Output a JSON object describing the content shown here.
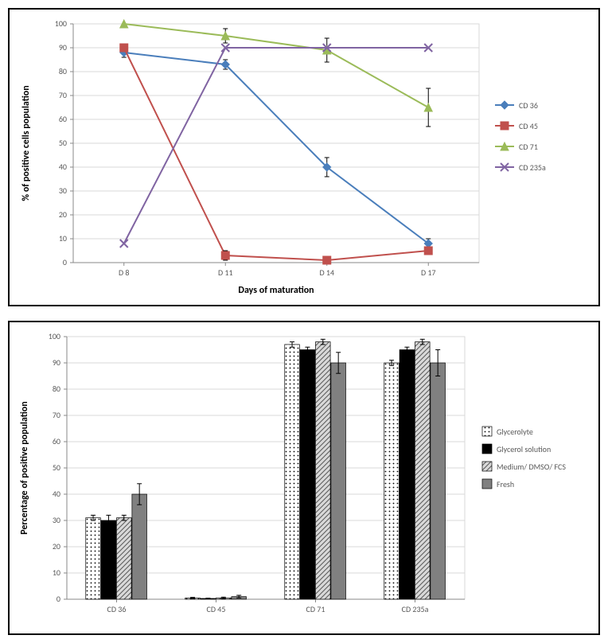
{
  "top_chart": {
    "type": "line",
    "ylabel": "% of positive cells population",
    "xlabel": "Days of maturation",
    "x_categories": [
      "D 8",
      "D 11",
      "D 14",
      "D 17"
    ],
    "ylim": [
      0,
      100
    ],
    "ytick_step": 10,
    "label_fontsize": 12,
    "axis_fontsize": 10,
    "background_color": "#ffffff",
    "grid_color": "#d9d9d9",
    "series": [
      {
        "name": "CD 36",
        "color": "#4a7ebb",
        "marker": "diamond",
        "values": [
          88,
          83,
          40,
          8
        ],
        "err": [
          2,
          2,
          4,
          2
        ]
      },
      {
        "name": "CD 45",
        "color": "#c0504d",
        "marker": "square",
        "values": [
          90,
          3,
          1,
          5
        ],
        "err": [
          0,
          2,
          1,
          0
        ]
      },
      {
        "name": "CD 71",
        "color": "#9bbb59",
        "marker": "triangle",
        "values": [
          100,
          95,
          89,
          65
        ],
        "err": [
          0,
          3,
          5,
          8
        ]
      },
      {
        "name": "CD 235a",
        "color": "#8064a2",
        "marker": "x",
        "values": [
          8,
          90,
          90,
          90
        ],
        "err": [
          0,
          0,
          0,
          0
        ]
      }
    ]
  },
  "bottom_chart": {
    "type": "bar",
    "ylabel": "Percentage of positive population",
    "x_categories": [
      "CD 36",
      "CD 45",
      "CD 71",
      "CD 235a"
    ],
    "ylim": [
      0,
      100
    ],
    "ytick_step": 10,
    "label_fontsize": 12,
    "axis_fontsize": 10,
    "background_color": "#ffffff",
    "grid_color": "#d9d9d9",
    "legend": [
      {
        "name": "Glycerolyte",
        "pattern": "dots",
        "fill": "#ffffff"
      },
      {
        "name": "Glycerol solution",
        "pattern": "solid",
        "fill": "#000000"
      },
      {
        "name": "Medium/ DMSO/ FCS",
        "pattern": "diag",
        "fill": "#bfbfbf"
      },
      {
        "name": "Fresh",
        "pattern": "solid",
        "fill": "#808080"
      }
    ],
    "groups": [
      {
        "values": [
          31,
          30,
          31,
          40
        ],
        "err": [
          1,
          2,
          1,
          4
        ]
      },
      {
        "values": [
          0.5,
          0.3,
          0.5,
          1
        ],
        "err": [
          0.2,
          0.1,
          0.3,
          0.5
        ]
      },
      {
        "values": [
          97,
          95,
          98,
          90
        ],
        "err": [
          1,
          1,
          1,
          4
        ]
      },
      {
        "values": [
          90,
          95,
          98,
          90
        ],
        "err": [
          1,
          1,
          1,
          5
        ]
      }
    ]
  }
}
